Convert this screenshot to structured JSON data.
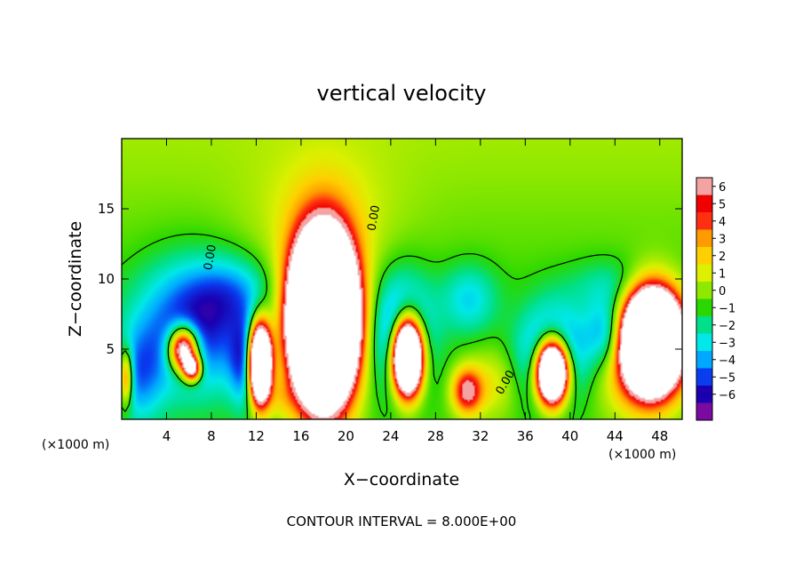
{
  "chart_data": {
    "type": "heatmap",
    "title": "vertical velocity",
    "xlabel": "X−coordinate",
    "ylabel": "Z−coordinate",
    "x_unit": "(×1000 m)",
    "y_unit": "(×1000 m)",
    "xlim": [
      0,
      50
    ],
    "ylim": [
      0,
      20
    ],
    "x_ticks": [
      4,
      8,
      12,
      16,
      20,
      24,
      28,
      32,
      36,
      40,
      44,
      48
    ],
    "x_tick_labels": [
      "4",
      "8",
      "12",
      "16",
      "20",
      "24",
      "28",
      "32",
      "36",
      "40",
      "44",
      "48"
    ],
    "y_ticks": [
      5,
      10,
      15
    ],
    "y_tick_labels": [
      "5",
      "10",
      "15"
    ],
    "colorbar": {
      "ticks": [
        6,
        5,
        4,
        3,
        2,
        1,
        0,
        -1,
        -2,
        -3,
        -4,
        -5,
        -6
      ],
      "labels": [
        "6",
        "5",
        "4",
        "3",
        "2",
        "1",
        "0",
        "−1",
        "−2",
        "−3",
        "−4",
        "−5",
        "−6"
      ],
      "colors": [
        "#f4a3a3",
        "#f00000",
        "#ff3010",
        "#ff9a00",
        "#ffd000",
        "#dcf000",
        "#8ee800",
        "#28d800",
        "#00e08a",
        "#00e8e8",
        "#00a8ff",
        "#0a3cf0",
        "#1a00b0",
        "#7a0aa0"
      ]
    },
    "contour_label": "0.00",
    "contour_interval_text": "CONTOUR INTERVAL = 8.000E+00",
    "features": [
      {
        "kind": "updraft",
        "x": 18,
        "z": 7,
        "rx": 2.6,
        "rz": 5.2,
        "peak": 40
      },
      {
        "kind": "updraft",
        "x": 12.3,
        "z": 4,
        "rx": 1.0,
        "rz": 2.7,
        "peak": 24
      },
      {
        "kind": "updraft",
        "x": 38.4,
        "z": 3.4,
        "rx": 1.4,
        "rz": 2.2,
        "peak": 22
      },
      {
        "kind": "updraft",
        "x": 47.3,
        "z": 5.7,
        "rx": 2.4,
        "rz": 3.2,
        "peak": 30
      },
      {
        "kind": "updraft",
        "x": 30.8,
        "z": 2,
        "rx": 1.3,
        "rz": 1.6,
        "peak": 6
      },
      {
        "kind": "updraft",
        "x": 25.5,
        "z": 4.5,
        "rx": 1.3,
        "rz": 2.6,
        "peak": 24
      },
      {
        "kind": "updraft",
        "x": 5.5,
        "z": 5,
        "rx": 1.3,
        "rz": 1.6,
        "peak": 12
      },
      {
        "kind": "updraft",
        "x": 6.3,
        "z": 3.6,
        "rx": 0.8,
        "rz": 0.9,
        "peak": 9
      },
      {
        "kind": "updraft",
        "x": 0.4,
        "z": 3.0,
        "rx": 0.6,
        "rz": 2.0,
        "peak": 6
      },
      {
        "kind": "downdraft",
        "x": 6.3,
        "z": 6.5,
        "rx": 4.8,
        "rz": 4.5,
        "peak": -5.2
      },
      {
        "kind": "downdraft",
        "x": 11.5,
        "z": 4.0,
        "rx": 1.6,
        "rz": 3.0,
        "peak": -5.5
      },
      {
        "kind": "downdraft",
        "x": 25.0,
        "z": 6.0,
        "rx": 2.6,
        "rz": 4.0,
        "peak": -5.5
      },
      {
        "kind": "downdraft",
        "x": 38.5,
        "z": 4.5,
        "rx": 3.0,
        "rz": 3.5,
        "peak": -5.5
      },
      {
        "kind": "downdraft",
        "x": 43.5,
        "z": 6.0,
        "rx": 2.0,
        "rz": 2.5,
        "peak": -4.0
      },
      {
        "kind": "downdraft",
        "x": 31.0,
        "z": 8.5,
        "rx": 2.5,
        "rz": 2.5,
        "peak": -2.5
      },
      {
        "kind": "downdraft",
        "x": 10.0,
        "z": 9.0,
        "rx": 3.5,
        "rz": 2.5,
        "peak": -2.2
      },
      {
        "kind": "downdraft",
        "x": 44.0,
        "z": 9.5,
        "rx": 4.0,
        "rz": 2.0,
        "peak": -1.6
      },
      {
        "kind": "downdraft",
        "x": 1.5,
        "z": 3.0,
        "rx": 2.2,
        "rz": 3.5,
        "peak": -3.0
      },
      {
        "kind": "positive-background",
        "x": 18,
        "z": 14,
        "rx": 6.0,
        "rz": 5.0,
        "peak": 1.8
      },
      {
        "kind": "positive-background",
        "x": 46.0,
        "z": 3.5,
        "rx": 4.0,
        "rz": 3.5,
        "peak": 3.0
      },
      {
        "kind": "positive-background",
        "x": 33.0,
        "z": 2.5,
        "rx": 2.5,
        "rz": 2.5,
        "peak": 2.0
      },
      {
        "kind": "positive-background",
        "x": 14.0,
        "z": 1.5,
        "rx": 1.5,
        "rz": 1.5,
        "peak": 1.5
      }
    ]
  }
}
